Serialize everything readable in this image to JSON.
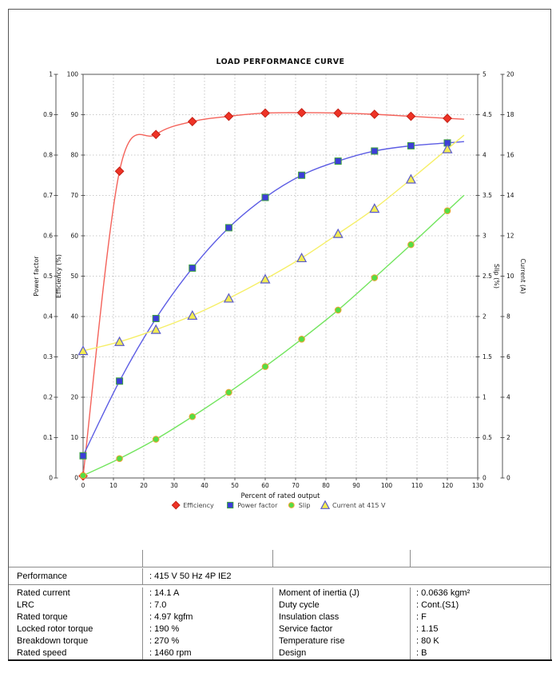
{
  "chart_data": {
    "type": "line",
    "title": "LOAD PERFORMANCE CURVE",
    "xlabel": "Percent of rated output",
    "x_range": [
      0,
      130
    ],
    "x_step": 10,
    "grid": true,
    "grid_axis": "eff",
    "legend_position": "bottom",
    "x": [
      0,
      12,
      24,
      36,
      48,
      60,
      72,
      84,
      96,
      108,
      120
    ],
    "line_extend_x": 125.5,
    "axes": [
      {
        "id": "pf",
        "title": "Power factor",
        "min": 0,
        "max": 1,
        "step": 0.1,
        "side": "left-outer"
      },
      {
        "id": "eff",
        "title": "Efficiency (%)",
        "min": 0,
        "max": 100,
        "step": 10,
        "side": "left-inner"
      },
      {
        "id": "slip",
        "title": "Slip (%)",
        "min": 0,
        "max": 5,
        "step": 0.5,
        "side": "right-inner"
      },
      {
        "id": "cur",
        "title": "Current (A)",
        "min": 0,
        "max": 20,
        "step": 2,
        "side": "right-outer"
      }
    ],
    "series": [
      {
        "name": "Efficiency",
        "axis": "eff",
        "marker": "diamond",
        "line_color": "#f4625a",
        "marker_fill": "#ee3326",
        "marker_stroke": "#c32015",
        "values": [
          0.5,
          76,
          85.1,
          88.3,
          89.6,
          90.4,
          90.5,
          90.4,
          90.1,
          89.6,
          89.1
        ]
      },
      {
        "name": "Power factor",
        "axis": "pf",
        "marker": "square",
        "line_color": "#5c5ce4",
        "marker_fill": "#3d3dd8",
        "marker_stroke": "#3da33d",
        "values": [
          0.055,
          0.24,
          0.395,
          0.52,
          0.62,
          0.695,
          0.75,
          0.785,
          0.81,
          0.823,
          0.83
        ]
      },
      {
        "name": "Slip",
        "axis": "slip",
        "marker": "circle",
        "line_color": "#72e55e",
        "marker_fill": "#55dd44",
        "marker_stroke": "#f2a233",
        "values": [
          0.03,
          0.24,
          0.48,
          0.76,
          1.06,
          1.38,
          1.72,
          2.08,
          2.48,
          2.89,
          3.31
        ]
      },
      {
        "name": "Current at 415 V",
        "axis": "cur",
        "marker": "triangle",
        "line_color": "#f6ef68",
        "marker_fill": "#f3ec52",
        "marker_stroke": "#5a5acc",
        "values": [
          6.3,
          6.75,
          7.35,
          8.05,
          8.9,
          9.85,
          10.9,
          12.1,
          13.35,
          14.8,
          16.3
        ]
      }
    ]
  },
  "table": {
    "performance": {
      "label": "Performance",
      "value": ": 415 V 50 Hz 4P IE2"
    },
    "left": [
      {
        "label": "Rated current",
        "value": ": 14.1 A"
      },
      {
        "label": "LRC",
        "value": ": 7.0"
      },
      {
        "label": "Rated torque",
        "value": ": 4.97 kgfm"
      },
      {
        "label": "Locked rotor torque",
        "value": ": 190 %"
      },
      {
        "label": "Breakdown torque",
        "value": ": 270 %"
      },
      {
        "label": "Rated speed",
        "value": ": 1460 rpm"
      }
    ],
    "right": [
      {
        "label": "Moment of inertia (J)",
        "value": ": 0.0636 kgm²"
      },
      {
        "label": "Duty cycle",
        "value": ": Cont.(S1)"
      },
      {
        "label": "Insulation class",
        "value": ": F"
      },
      {
        "label": "Service factor",
        "value": ": 1.15"
      },
      {
        "label": "Temperature rise",
        "value": ": 80 K"
      },
      {
        "label": "Design",
        "value": ": B"
      }
    ]
  }
}
